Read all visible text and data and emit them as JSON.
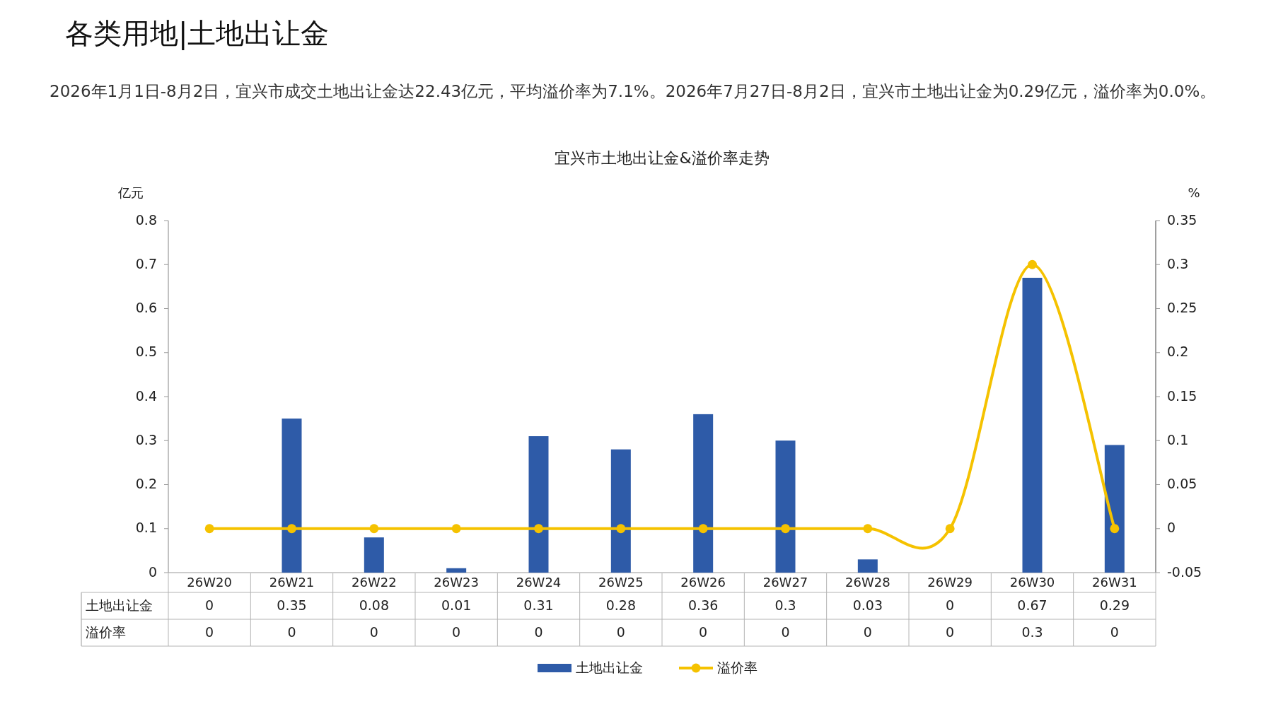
{
  "chart_data": {
    "type": "bar",
    "subtitle": "各类用地|土地出让金",
    "annotations": [
      "2026年1月1日-8月2日，宜兴市成交土地出让金达22.43亿元，平均溢价率为7.1%。2026年7月27日-8月2日，宜兴市土地出让金为0.29亿元，溢价率为0.0%。"
    ],
    "title": "宜兴市土地出让金&溢价率走势",
    "ylabel": "亿元",
    "y2label": "%",
    "categories": [
      "26W20",
      "26W21",
      "26W22",
      "26W23",
      "26W24",
      "26W25",
      "26W26",
      "26W27",
      "26W28",
      "26W29",
      "26W30",
      "26W31"
    ],
    "ylim": [
      0,
      0.8
    ],
    "yticks": [
      0,
      0.1,
      0.2,
      0.3,
      0.4,
      0.5,
      0.6,
      0.7,
      0.8
    ],
    "y2lim": [
      -0.05,
      0.35
    ],
    "y2ticks": [
      -0.05,
      0,
      0.05,
      0.1,
      0.15,
      0.2,
      0.25,
      0.3,
      0.35
    ],
    "series": [
      {
        "name": "土地出让金",
        "color": "#2e5ba8",
        "values": [
          0,
          0.35,
          0.08,
          0.01,
          0.31,
          0.28,
          0.36,
          0.3,
          0.03,
          0,
          0.67,
          0.29
        ]
      },
      {
        "name": "溢价率",
        "type": "line",
        "axis": "y2",
        "color": "#f5c200",
        "values": [
          0,
          0,
          0,
          0,
          0,
          0,
          0,
          0,
          0,
          0,
          0.3,
          0
        ]
      }
    ],
    "marker": "circle",
    "data_labels": true,
    "legend": "bottom",
    "grid": false
  }
}
